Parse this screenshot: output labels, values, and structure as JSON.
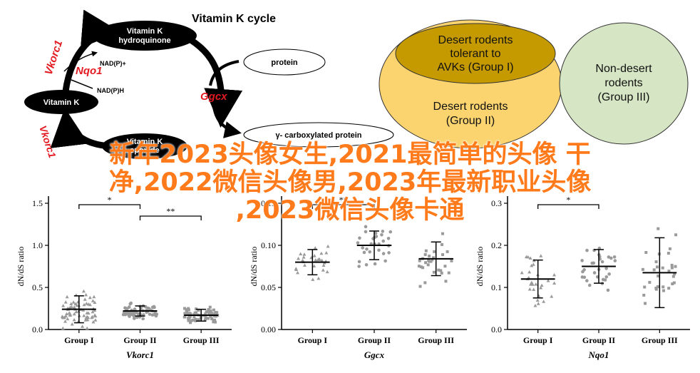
{
  "colors": {
    "accent_red": "#e31b23",
    "overlay_orange": "#ff7a1a",
    "venn_dark": "#c49a00",
    "venn_light": "#fbd470",
    "venn_green": "#d6e5c3"
  },
  "cycle": {
    "title": "Vitamin K cycle",
    "hydroquinone": "Vitamin K hydroquinone",
    "vitk": "Vitamin K",
    "epoxide": "Vitamin K epoxide",
    "vkorc1_top": "Vkorc1",
    "vkorc1_bottom": "Vkorc1",
    "nqo1": "Nqo1",
    "nadp_plus": "NAD(P)+",
    "nadph": "NAD(P)H",
    "ggcx": "Ggcx",
    "protein": "protein",
    "carboxylated": "γ- carboxylated protein"
  },
  "venn": {
    "group1": "Desert rodents tolerant to AVKs (Group I)",
    "group2": "Desert rodents (Group II)",
    "group3": "Non-desert rodents (Group III)"
  },
  "overlay": {
    "line1": "新年2023头像女生,2021最简单的头像 干",
    "line2": "净,2022微信头像男,2023年最新职业头像",
    "line3": ",2023微信头像卡通"
  },
  "chart_data": [
    {
      "type": "scatter",
      "xlabel": "Vkorc1",
      "ylabel": "dN/dS ratio",
      "categories": [
        "Group I",
        "Group II",
        "Group III"
      ],
      "yticks": [
        "0.0",
        "0.5",
        "1.0",
        "1.5"
      ],
      "ylim": [
        0,
        1.5
      ],
      "means": [
        0.24,
        0.22,
        0.17
      ],
      "sd": [
        0.16,
        0.06,
        0.07
      ],
      "significance": [
        {
          "groups": [
            "Group I",
            "Group II"
          ],
          "label": "*"
        },
        {
          "groups": [
            "Group II",
            "Group III"
          ],
          "label": "**"
        }
      ]
    },
    {
      "type": "scatter",
      "xlabel": "Ggcx",
      "ylabel": "dN/dS ratio",
      "categories": [
        "Group I",
        "Group II",
        "Group III"
      ],
      "yticks": [
        "0.00",
        "0.05",
        "0.10",
        "0.15"
      ],
      "ylim": [
        0,
        0.15
      ],
      "means": [
        0.08,
        0.1,
        0.084
      ],
      "sd": [
        0.015,
        0.017,
        0.02
      ],
      "significance": [
        {
          "groups": [
            "Group I",
            "Group II"
          ],
          "label": "**"
        }
      ]
    },
    {
      "type": "scatter",
      "xlabel": "Nqo1",
      "ylabel": "dN/dS ratio",
      "categories": [
        "Group I",
        "Group II",
        "Group III"
      ],
      "yticks": [
        "0.0",
        "0.1",
        "0.2",
        "0.3"
      ],
      "ylim": [
        0,
        0.3
      ],
      "means": [
        0.12,
        0.15,
        0.135
      ],
      "sd": [
        0.045,
        0.04,
        0.083
      ],
      "significance": [
        {
          "groups": [
            "Group I",
            "Group II"
          ],
          "label": "*"
        }
      ]
    }
  ]
}
